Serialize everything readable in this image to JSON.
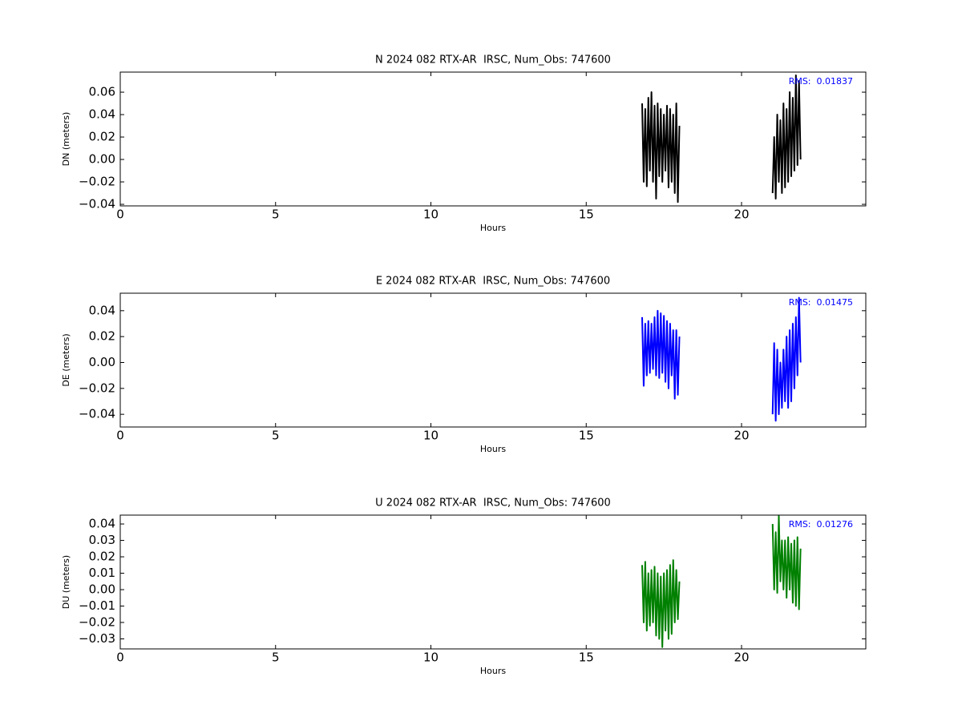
{
  "chart_data": [
    {
      "type": "line",
      "title": "N 2024 082 RTX-AR  IRSC, Num_Obs: 747600",
      "x_label": "Hours",
      "y_label": "DN (meters)",
      "annotation": "RMS:  0.01837",
      "x": [
        16.8,
        16.85,
        16.9,
        16.95,
        17.0,
        17.05,
        17.1,
        17.15,
        17.2,
        17.25,
        17.3,
        17.35,
        17.4,
        17.45,
        17.5,
        17.55,
        17.6,
        17.65,
        17.7,
        17.75,
        17.8,
        17.85,
        17.9,
        17.95,
        18.0,
        19.5,
        21.0,
        21.05,
        21.1,
        21.15,
        21.2,
        21.25,
        21.3,
        21.35,
        21.4,
        21.45,
        21.5,
        21.55,
        21.6,
        21.65,
        21.7,
        21.75,
        21.8,
        21.85,
        21.9
      ],
      "series": [
        {
          "name": "DN",
          "color": "#000000",
          "values": [
            0.05,
            -0.02,
            0.045,
            -0.024,
            0.055,
            -0.01,
            0.06,
            -0.02,
            0.048,
            -0.035,
            0.05,
            -0.015,
            0.045,
            -0.02,
            0.04,
            -0.01,
            0.048,
            -0.025,
            0.045,
            -0.02,
            0.04,
            -0.03,
            0.05,
            -0.038,
            0.03,
            null,
            -0.03,
            0.02,
            -0.035,
            0.04,
            -0.02,
            0.035,
            -0.03,
            0.05,
            -0.025,
            0.045,
            -0.02,
            0.06,
            -0.015,
            0.055,
            -0.01,
            0.075,
            -0.005,
            0.07,
            0.0
          ]
        }
      ],
      "xlim": [
        0,
        24
      ],
      "xticks": [
        0,
        5,
        10,
        15,
        20
      ],
      "ylim": [
        -0.0414,
        0.0779
      ],
      "yticks": [
        {
          "value": -0.04,
          "label": "−0.04"
        },
        {
          "value": -0.02,
          "label": "−0.02"
        },
        {
          "value": 0,
          "label": "0.00"
        },
        0.02,
        0.04,
        0.06
      ]
    },
    {
      "type": "line",
      "title": "E 2024 082 RTX-AR  IRSC, Num_Obs: 747600",
      "x_label": "Hours",
      "y_label": "DE (meters)",
      "annotation": "RMS:  0.01475",
      "x": [
        16.8,
        16.85,
        16.9,
        16.95,
        17.0,
        17.05,
        17.1,
        17.15,
        17.2,
        17.25,
        17.3,
        17.35,
        17.4,
        17.45,
        17.5,
        17.55,
        17.6,
        17.65,
        17.7,
        17.75,
        17.8,
        17.85,
        17.9,
        17.95,
        18.0,
        19.5,
        21.0,
        21.05,
        21.1,
        21.15,
        21.2,
        21.25,
        21.3,
        21.35,
        21.4,
        21.45,
        21.5,
        21.55,
        21.6,
        21.65,
        21.7,
        21.75,
        21.8,
        21.85,
        21.9
      ],
      "series": [
        {
          "name": "DE",
          "color": "#0000ff",
          "values": [
            0.035,
            -0.018,
            0.03,
            -0.01,
            0.032,
            -0.008,
            0.03,
            -0.005,
            0.035,
            -0.01,
            0.04,
            -0.012,
            0.038,
            -0.008,
            0.036,
            -0.015,
            0.032,
            -0.02,
            0.03,
            -0.01,
            0.025,
            -0.028,
            0.025,
            -0.025,
            0.02,
            null,
            -0.04,
            0.015,
            -0.045,
            0.01,
            -0.04,
            0.0,
            -0.035,
            0.01,
            -0.03,
            0.02,
            -0.035,
            0.025,
            -0.03,
            0.03,
            -0.02,
            0.035,
            -0.01,
            0.05,
            0.0
          ]
        }
      ],
      "xlim": [
        0,
        24
      ],
      "xticks": [
        0,
        5,
        10,
        15,
        20
      ],
      "ylim": [
        -0.0498,
        0.0535
      ],
      "yticks": [
        {
          "value": -0.04,
          "label": "−0.04"
        },
        {
          "value": -0.02,
          "label": "−0.02"
        },
        {
          "value": 0,
          "label": "0.00"
        },
        0.02,
        0.04
      ]
    },
    {
      "type": "line",
      "title": "U 2024 082 RTX-AR  IRSC, Num_Obs: 747600",
      "x_label": "Hours",
      "y_label": "DU (meters)",
      "annotation": "RMS:  0.01276",
      "x": [
        16.8,
        16.85,
        16.9,
        16.95,
        17.0,
        17.05,
        17.1,
        17.15,
        17.2,
        17.25,
        17.3,
        17.35,
        17.4,
        17.45,
        17.5,
        17.55,
        17.6,
        17.65,
        17.7,
        17.75,
        17.8,
        17.85,
        17.9,
        17.95,
        18.0,
        19.5,
        21.0,
        21.05,
        21.1,
        21.15,
        21.2,
        21.25,
        21.3,
        21.35,
        21.4,
        21.45,
        21.5,
        21.55,
        21.6,
        21.65,
        21.7,
        21.75,
        21.8,
        21.85,
        21.9
      ],
      "series": [
        {
          "name": "DU",
          "color": "#008000",
          "values": [
            0.015,
            -0.02,
            0.017,
            -0.025,
            0.01,
            -0.022,
            0.012,
            -0.02,
            0.014,
            -0.028,
            0.01,
            -0.03,
            0.008,
            -0.035,
            0.01,
            -0.025,
            0.012,
            -0.03,
            0.015,
            -0.027,
            0.018,
            -0.02,
            0.012,
            -0.018,
            0.005,
            null,
            0.04,
            0.0,
            0.035,
            -0.002,
            0.045,
            0.005,
            0.03,
            0.0,
            0.03,
            -0.005,
            0.032,
            0.0,
            0.028,
            -0.008,
            0.03,
            -0.01,
            0.032,
            -0.012,
            0.025
          ]
        }
      ],
      "xlim": [
        0,
        24
      ],
      "xticks": [
        0,
        5,
        10,
        15,
        20
      ],
      "ylim": [
        -0.0361,
        0.0454
      ],
      "yticks": [
        {
          "value": -0.03,
          "label": "−0.03"
        },
        {
          "value": -0.02,
          "label": "−0.02"
        },
        {
          "value": -0.01,
          "label": "−0.01"
        },
        {
          "value": 0,
          "label": "0.00"
        },
        0.01,
        0.02,
        0.03,
        0.04
      ]
    }
  ]
}
